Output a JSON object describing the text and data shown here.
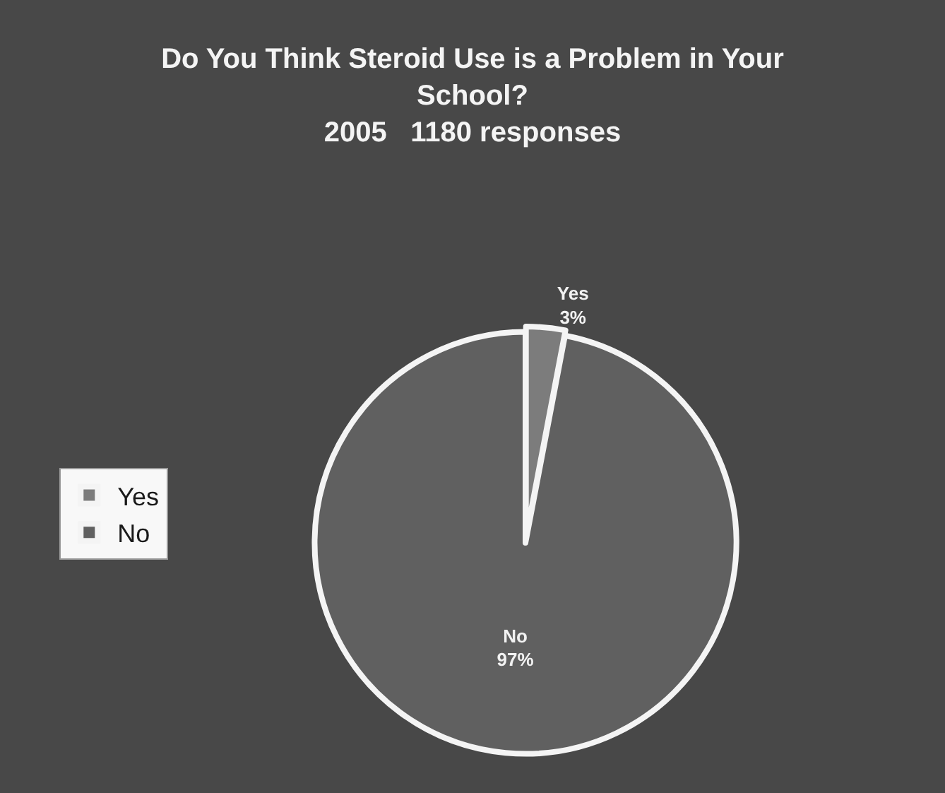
{
  "chart_data": {
    "type": "pie",
    "title": "Do You Think Steroid Use is a Problem in Your School?",
    "subtitle": "2005   1180 responses",
    "categories": [
      "Yes",
      "No"
    ],
    "values": [
      3,
      97
    ],
    "value_labels": [
      "3%",
      "97%"
    ],
    "colors": [
      "#7c7c7c",
      "#606060"
    ],
    "legend": "left"
  }
}
